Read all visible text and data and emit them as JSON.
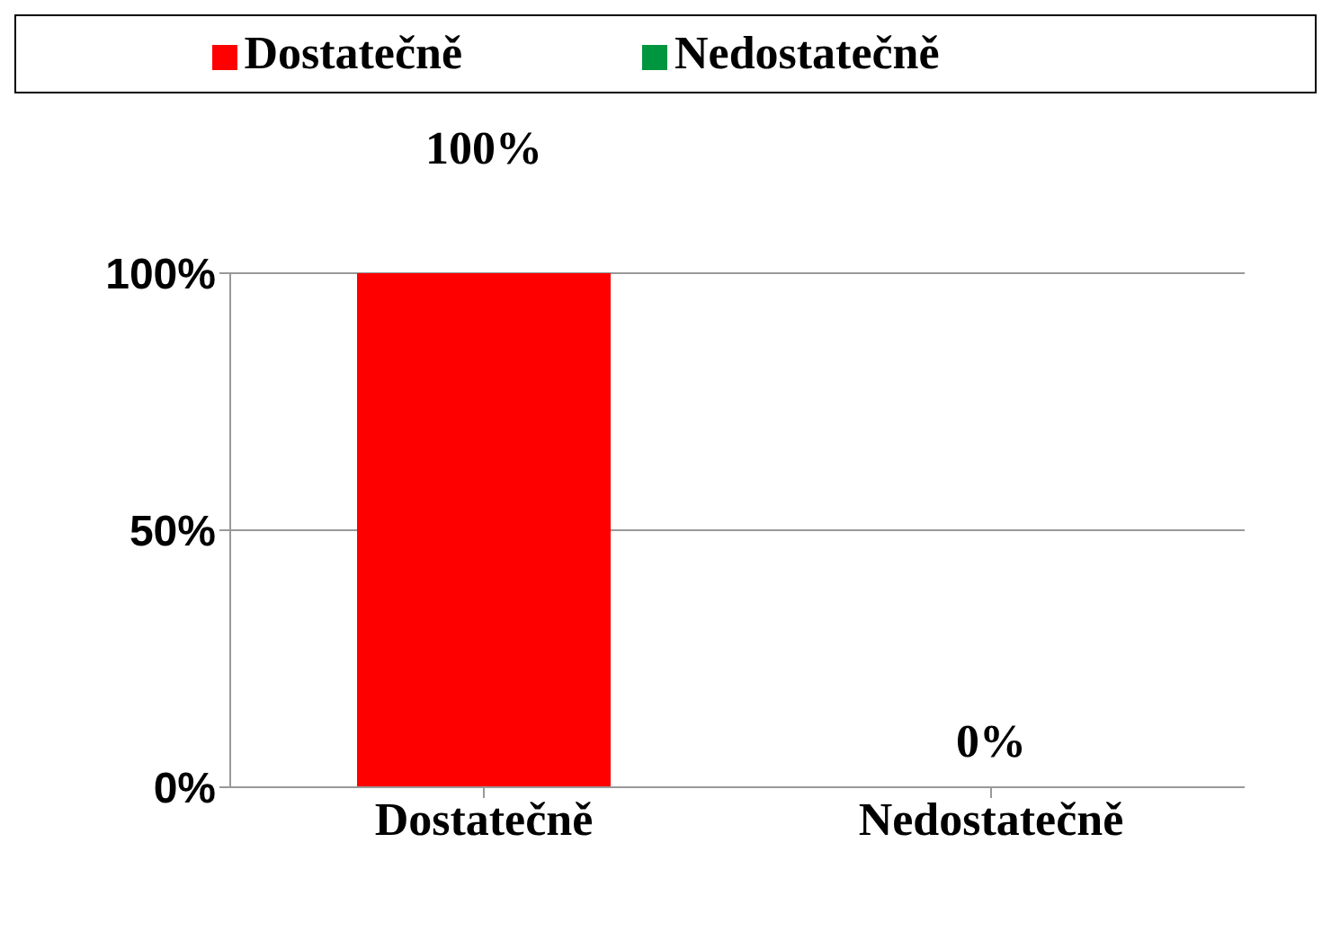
{
  "chart_data": {
    "type": "bar",
    "categories": [
      "Dostatečně",
      "Nedostatečně"
    ],
    "series": [
      {
        "name": "Dostatečně",
        "color": "#ff0000",
        "values": [
          100,
          null
        ],
        "value_labels": [
          "100%",
          null
        ]
      },
      {
        "name": "Nedostatečně",
        "color": "#00953f",
        "values": [
          null,
          0
        ],
        "value_labels": [
          null,
          "0%"
        ]
      }
    ],
    "stacked": true,
    "ylim": [
      0,
      100
    ],
    "yticks": [
      {
        "value": 0,
        "label": "0%"
      },
      {
        "value": 50,
        "label": "50%"
      },
      {
        "value": 100,
        "label": "100%"
      }
    ],
    "grid": "y",
    "legend": "top"
  }
}
